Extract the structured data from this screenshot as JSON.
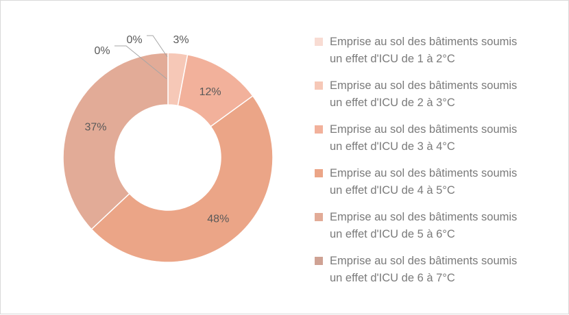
{
  "chart_data": {
    "type": "pie",
    "variant": "donut",
    "categories": [
      "Emprise au sol des bâtiments soumis\nun effet d'ICU de 1 à 2°C",
      "Emprise au sol des bâtiments soumis\nun effet d'ICU de 2 à 3°C",
      "Emprise au sol des bâtiments soumis\nun effet d'ICU de 3 à 4°C",
      "Emprise au sol des bâtiments soumis\nun effet d'ICU de 4 à 5°C",
      "Emprise au sol des bâtiments soumis\nun effet d'ICU de 5 à 6°C",
      "Emprise au sol des bâtiments soumis\nun effet d'ICU de 6 à 7°C"
    ],
    "values": [
      0,
      3,
      12,
      48,
      37,
      0
    ],
    "data_labels": [
      "0%",
      "3%",
      "12%",
      "48%",
      "37%",
      "0%"
    ],
    "colors": [
      "#f8dcd3",
      "#f6c8b7",
      "#f2b19b",
      "#eba587",
      "#e2ab97",
      "#cfa294"
    ],
    "legend": "right"
  },
  "legend_items": [
    {
      "label": "Emprise au sol des bâtiments soumis\nun effet d'ICU de 1 à 2°C",
      "color": "#f8dcd3"
    },
    {
      "label": "Emprise au sol des bâtiments soumis\nun effet d'ICU de 2 à 3°C",
      "color": "#f6c8b7"
    },
    {
      "label": "Emprise au sol des bâtiments soumis\nun effet d'ICU de 3 à 4°C",
      "color": "#f2b19b"
    },
    {
      "label": "Emprise au sol des bâtiments soumis\nun effet d'ICU de 4 à 5°C",
      "color": "#eba587"
    },
    {
      "label": "Emprise au sol des bâtiments soumis\nun effet d'ICU de 5 à 6°C",
      "color": "#e2ab97"
    },
    {
      "label": "Emprise au sol des bâtiments soumis\nun effet d'ICU de 6 à 7°C",
      "color": "#cfa294"
    }
  ]
}
